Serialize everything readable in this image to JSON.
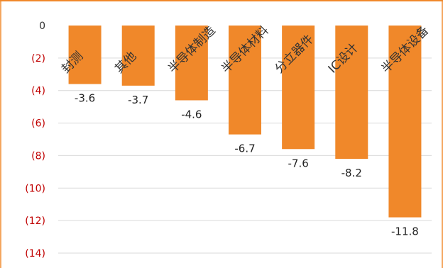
{
  "chart_data": {
    "type": "bar",
    "categories": [
      "封测",
      "其他",
      "半导体制造",
      "半导体材料",
      "分立器件",
      "IC设计",
      "半导体设备"
    ],
    "values": [
      -3.6,
      -3.7,
      -4.6,
      -6.7,
      -7.6,
      -8.2,
      -11.8
    ],
    "data_labels": [
      "-3.6",
      "-3.7",
      "-4.6",
      "-6.7",
      "-7.6",
      "-8.2",
      "-11.8"
    ],
    "ylim": [
      -14,
      0
    ],
    "y_ticks": [
      {
        "value": 0,
        "label": "0"
      },
      {
        "value": -2,
        "label": "(2)"
      },
      {
        "value": -4,
        "label": "(4)"
      },
      {
        "value": -6,
        "label": "(6)"
      },
      {
        "value": -8,
        "label": "(8)"
      },
      {
        "value": -10,
        "label": "(10)"
      },
      {
        "value": -12,
        "label": "(12)"
      },
      {
        "value": -14,
        "label": "(14)"
      }
    ],
    "grid": true,
    "colors": {
      "bar": "#f0882a",
      "frame": "#f0882a",
      "grid": "#d9d9d9",
      "negative_tick": "#c00000",
      "zero_tick": "#333333"
    }
  }
}
